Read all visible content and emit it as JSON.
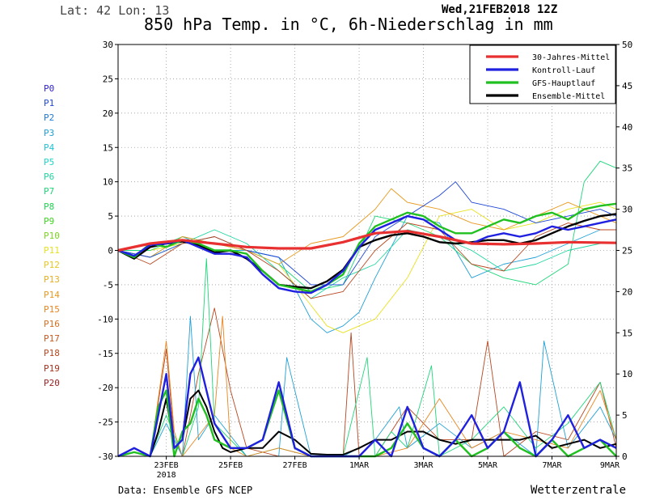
{
  "header": {
    "location": "Lat: 42 Lon: 13",
    "run": "Wed,21FEB2018 12Z",
    "title": "850 hPa Temp. in °C, 6h-Niederschlag in mm"
  },
  "footer": {
    "source": "Data: Ensemble GFS NCEP",
    "brand": "Wetterzentrale"
  },
  "members": [
    {
      "label": "P0",
      "color": "#2e1fd6"
    },
    {
      "label": "P1",
      "color": "#1f48d6"
    },
    {
      "label": "P2",
      "color": "#1f7ad6"
    },
    {
      "label": "P3",
      "color": "#1fa0d6"
    },
    {
      "label": "P4",
      "color": "#1fc4d6"
    },
    {
      "label": "P5",
      "color": "#1fd6c8"
    },
    {
      "label": "P6",
      "color": "#1fd6a0"
    },
    {
      "label": "P7",
      "color": "#1fd67a"
    },
    {
      "label": "P8",
      "color": "#1fd650"
    },
    {
      "label": "P9",
      "color": "#3ed61f"
    },
    {
      "label": "P10",
      "color": "#7ad61f"
    },
    {
      "label": "P11",
      "color": "#e8e21f"
    },
    {
      "label": "P12",
      "color": "#e8c81f"
    },
    {
      "label": "P13",
      "color": "#e8b01f"
    },
    {
      "label": "P14",
      "color": "#e89a1f"
    },
    {
      "label": "P15",
      "color": "#e8861f"
    },
    {
      "label": "P16",
      "color": "#d6701f"
    },
    {
      "label": "P17",
      "color": "#c85a1f"
    },
    {
      "label": "P18",
      "color": "#b8461f"
    },
    {
      "label": "P19",
      "color": "#a8321f"
    },
    {
      "label": "P20",
      "color": "#961f1f"
    }
  ],
  "chart_data": {
    "type": "line",
    "x_tick_labels": [
      "23FEB",
      "25FEB",
      "27FEB",
      "1MAR",
      "3MAR",
      "5MAR",
      "7MAR",
      "9MAR"
    ],
    "x_year_label": "2018",
    "x_tick_positions_days": [
      1.5,
      3.5,
      5.5,
      7.5,
      9.5,
      11.5,
      13.5,
      15.5
    ],
    "xlim_days": [
      0,
      15.5
    ],
    "y_left": {
      "ticks": [
        30,
        25,
        20,
        15,
        10,
        5,
        0,
        -5,
        -10,
        -15,
        -20,
        -25,
        -30
      ],
      "ylim": [
        -30,
        30
      ],
      "unit": "°C"
    },
    "y_right": {
      "ticks": [
        50,
        45,
        40,
        35,
        30,
        25,
        20,
        15,
        10,
        5,
        0
      ],
      "ylim": [
        0,
        50
      ],
      "unit": "mm"
    },
    "grid": true,
    "legend": {
      "position": "top-right",
      "entries": [
        {
          "label": "30-Jahres-Mittel",
          "color": "#e83030"
        },
        {
          "label": "Kontroll-Lauf",
          "color": "#2020e0"
        },
        {
          "label": "GFS-Hauptlauf",
          "color": "#20c020"
        },
        {
          "label": "Ensemble-Mittel",
          "color": "#000000"
        }
      ]
    },
    "temperature_series": [
      {
        "name": "30-Jahres-Mittel",
        "color": "#e83030",
        "width": 3.2,
        "x": [
          0,
          1,
          2,
          3,
          4,
          5,
          6,
          7,
          8,
          9,
          10,
          11,
          12,
          13,
          14,
          15.5
        ],
        "y": [
          0,
          1,
          1.5,
          1,
          0.5,
          0.3,
          0.3,
          1.2,
          2.5,
          2.8,
          2,
          1,
          0.9,
          1,
          1.2,
          1.1
        ]
      },
      {
        "name": "Ensemble-Mittel",
        "color": "#000000",
        "width": 2.4,
        "x": [
          0,
          0.5,
          1,
          1.5,
          2,
          2.5,
          3,
          3.5,
          4,
          4.5,
          5,
          5.5,
          6,
          6.5,
          7,
          7.5,
          8,
          8.5,
          9,
          9.5,
          10,
          10.5,
          11,
          11.5,
          12,
          12.5,
          13,
          13.5,
          14,
          14.5,
          15,
          15.5
        ],
        "y": [
          0,
          -1.2,
          0.5,
          1,
          1.3,
          0.8,
          -0.3,
          0,
          -1.2,
          -3,
          -5,
          -5.3,
          -5.5,
          -4.5,
          -2.8,
          0.5,
          1.5,
          2.2,
          2.5,
          2,
          1.2,
          1,
          1.2,
          1.5,
          1.5,
          1,
          1.5,
          2.5,
          3.5,
          4.3,
          5,
          5.3
        ]
      },
      {
        "name": "GFS-Hauptlauf",
        "color": "#20c020",
        "width": 2.4,
        "x": [
          0,
          0.5,
          1,
          1.5,
          2,
          2.5,
          3,
          3.5,
          4,
          4.5,
          5,
          5.5,
          6,
          6.5,
          7,
          7.5,
          8,
          8.5,
          9,
          9.5,
          10,
          10.5,
          11,
          11.5,
          12,
          12.5,
          13,
          13.5,
          14,
          14.5,
          15,
          15.5
        ],
        "y": [
          0,
          -1,
          1,
          0.5,
          1.5,
          1,
          0,
          0,
          -0.5,
          -3,
          -5,
          -5.5,
          -6,
          -5,
          -3.5,
          1,
          3.5,
          4.5,
          5.5,
          5,
          3.5,
          2.5,
          2.5,
          3.5,
          4.5,
          4,
          5,
          5.5,
          4.5,
          6,
          6.5,
          6.8
        ]
      },
      {
        "name": "Kontroll-Lauf",
        "color": "#2020e0",
        "width": 2.4,
        "x": [
          0,
          0.5,
          1,
          1.5,
          2,
          2.5,
          3,
          3.5,
          4,
          4.5,
          5,
          5.5,
          6,
          6.5,
          7,
          7.5,
          8,
          8.5,
          9,
          9.5,
          10,
          10.5,
          11,
          11.5,
          12,
          12.5,
          13,
          13.5,
          14,
          14.5,
          15,
          15.5
        ],
        "y": [
          0,
          -0.8,
          0.8,
          1,
          1.5,
          0.5,
          -0.5,
          -0.5,
          -1,
          -3.5,
          -5.5,
          -6,
          -6.2,
          -5,
          -3,
          0.5,
          3,
          4,
          5,
          4.5,
          3,
          1.5,
          1,
          2,
          2.5,
          2,
          2.5,
          3.5,
          3,
          3.5,
          4,
          4.5
        ]
      },
      {
        "name": "P3",
        "color": "#1fa0d6",
        "width": 0.9,
        "x": [
          0,
          1,
          2,
          3,
          4,
          5,
          6,
          6.5,
          7,
          7.5,
          8,
          9,
          10,
          11,
          12,
          13,
          14,
          15,
          15.5
        ],
        "y": [
          0,
          -1,
          2,
          0,
          0,
          -1,
          -10,
          -12,
          -11,
          -9,
          -4,
          5,
          4,
          -4,
          -2,
          -1,
          1,
          3,
          3
        ]
      },
      {
        "name": "P11",
        "color": "#e8e21f",
        "width": 0.9,
        "x": [
          0,
          1,
          2,
          3,
          4,
          5,
          6,
          6.5,
          7,
          7.5,
          8,
          9,
          10,
          11,
          12,
          13,
          14,
          15,
          15.5
        ],
        "y": [
          0,
          0,
          1,
          2,
          0,
          -2,
          -8,
          -11,
          -12,
          -11,
          -10,
          -4,
          5,
          6,
          3,
          4,
          6,
          7,
          6
        ]
      },
      {
        "name": "P7",
        "color": "#1fd67a",
        "width": 0.9,
        "x": [
          0,
          1,
          2,
          3,
          4,
          5,
          6,
          7,
          8,
          9,
          10,
          11,
          12,
          13,
          14,
          14.5,
          15,
          15.5
        ],
        "y": [
          0,
          0,
          2,
          1,
          0,
          -2,
          -6,
          -5,
          5,
          4,
          2,
          -2,
          -4,
          -5,
          -2,
          10,
          13,
          12
        ]
      },
      {
        "name": "P6",
        "color": "#1fd6a0",
        "width": 0.9,
        "x": [
          0,
          1,
          2,
          3,
          4,
          5,
          6,
          7,
          8,
          9,
          10,
          11,
          12,
          13,
          14,
          15,
          15.5
        ],
        "y": [
          0,
          -1,
          1,
          3,
          1,
          -3,
          -7,
          -4,
          -2,
          3,
          2,
          0,
          -3,
          -2,
          0,
          1,
          1
        ]
      },
      {
        "name": "P14",
        "color": "#e89a1f",
        "width": 0.9,
        "x": [
          0,
          1,
          2,
          3,
          4,
          5,
          6,
          7,
          8,
          8.5,
          9,
          10,
          11,
          12,
          13,
          14,
          15,
          15.5
        ],
        "y": [
          0,
          -1,
          2,
          1,
          0,
          -2,
          1,
          2,
          6,
          9,
          7,
          6,
          4,
          3,
          5,
          7,
          5,
          4
        ]
      },
      {
        "name": "P1",
        "color": "#1f48d6",
        "width": 0.9,
        "x": [
          0,
          1,
          2,
          3,
          4,
          5,
          6,
          7,
          8,
          9,
          10,
          10.5,
          11,
          12,
          13,
          14,
          15,
          15.5
        ],
        "y": [
          0,
          -1,
          1,
          2,
          0,
          -1,
          -5,
          -5,
          2,
          5,
          8,
          10,
          7,
          6,
          4,
          5,
          6,
          5
        ]
      },
      {
        "name": "P18",
        "color": "#b8461f",
        "width": 0.9,
        "x": [
          0,
          1,
          2,
          3,
          4,
          5,
          6,
          7,
          8,
          9,
          10,
          11,
          12,
          13,
          14,
          15,
          15.5
        ],
        "y": [
          0,
          -2,
          1,
          2,
          0,
          -3,
          -7,
          -6,
          0,
          4,
          3,
          -2,
          -3,
          2,
          4,
          3,
          3
        ]
      }
    ],
    "precipitation_series": [
      {
        "name": "Ensemble-Mittel",
        "color": "#000000",
        "width": 2,
        "x": [
          0,
          0.5,
          1,
          1.25,
          1.5,
          1.75,
          2,
          2.25,
          2.5,
          2.75,
          3,
          3.25,
          3.5,
          4,
          4.5,
          5,
          5.5,
          6,
          6.5,
          7,
          7.5,
          8,
          8.5,
          9,
          9.5,
          10,
          10.5,
          11,
          11.5,
          12,
          12.5,
          13,
          13.5,
          14,
          14.5,
          15,
          15.5
        ],
        "y": [
          0,
          1,
          0,
          3,
          7,
          1,
          2,
          7,
          8,
          6,
          3,
          1,
          0.5,
          1,
          1,
          3,
          2,
          0.3,
          0.2,
          0.2,
          1,
          2,
          2,
          3,
          3,
          2,
          1.5,
          2,
          2,
          2,
          2,
          2.5,
          1,
          1.5,
          2,
          1,
          1.5
        ]
      },
      {
        "name": "GFS-Hauptlauf",
        "color": "#20c020",
        "width": 2.4,
        "x": [
          0,
          0.5,
          1,
          1.25,
          1.5,
          1.75,
          2,
          2.25,
          2.5,
          2.75,
          3,
          3.5,
          4,
          4.5,
          5,
          5.5,
          6,
          6.5,
          7,
          7.5,
          8,
          8.5,
          9,
          9.5,
          10,
          10.5,
          11,
          11.5,
          12,
          12.5,
          13,
          13.5,
          14,
          14.5,
          15,
          15.5
        ],
        "y": [
          0,
          0.5,
          0,
          6,
          8,
          0,
          3,
          4,
          7,
          5,
          2,
          1,
          1,
          2,
          8,
          1,
          0,
          0,
          0,
          0,
          0,
          1,
          4,
          1,
          0,
          2,
          0,
          1,
          3,
          1,
          0,
          2,
          0,
          1,
          2,
          0
        ]
      },
      {
        "name": "Kontroll-Lauf",
        "color": "#2020e0",
        "width": 2.4,
        "x": [
          0,
          0.5,
          1,
          1.25,
          1.5,
          1.75,
          2,
          2.25,
          2.5,
          2.75,
          3,
          3.5,
          4,
          4.5,
          5,
          5.5,
          6,
          6.5,
          7,
          7.5,
          8,
          8.5,
          9,
          9.5,
          10,
          10.5,
          11,
          11.5,
          12,
          12.5,
          13,
          13.5,
          14,
          14.5,
          15,
          15.5
        ],
        "y": [
          0,
          1,
          0,
          5,
          10,
          1,
          2,
          10,
          12,
          8,
          4,
          1,
          1,
          2,
          9,
          1,
          0,
          0,
          0,
          0,
          2,
          0,
          6,
          1,
          0,
          2,
          5,
          1,
          3,
          9,
          0,
          2,
          5,
          1,
          2,
          1
        ]
      },
      {
        "name": "P18",
        "color": "#b8461f",
        "width": 0.9,
        "x": [
          0,
          1,
          1.5,
          1.75,
          2,
          2.5,
          3,
          3.5,
          4,
          5,
          6,
          7,
          7.25,
          7.5,
          8,
          9,
          10,
          11,
          11.5,
          12,
          13,
          14,
          15,
          15.5
        ],
        "y": [
          0,
          0,
          13,
          2,
          0,
          10,
          18,
          8,
          1,
          0,
          0,
          0,
          15,
          0,
          0,
          6,
          2,
          2,
          14,
          0,
          3,
          2,
          9,
          1
        ]
      },
      {
        "name": "P7",
        "color": "#1fd67a",
        "width": 0.9,
        "x": [
          0,
          1,
          1.5,
          2,
          2.5,
          2.75,
          3,
          4,
          5,
          6,
          7,
          7.75,
          8,
          8.5,
          9,
          9.75,
          10,
          11,
          12,
          13,
          14,
          15,
          15.5
        ],
        "y": [
          0,
          0,
          5,
          0,
          6,
          24,
          4,
          0,
          1,
          0,
          0,
          12,
          0,
          3,
          1,
          11,
          0,
          2,
          6,
          1,
          4,
          9,
          2
        ]
      },
      {
        "name": "P3",
        "color": "#1fa0d6",
        "width": 0.9,
        "x": [
          0,
          1,
          1.5,
          2,
          2.25,
          2.5,
          3,
          4,
          5,
          5.25,
          6,
          7,
          8,
          8.75,
          9,
          10,
          11,
          12,
          13,
          13.25,
          14,
          15,
          15.5
        ],
        "y": [
          0,
          0,
          4,
          0,
          17,
          2,
          5,
          0,
          0,
          12,
          0,
          0,
          2,
          6,
          1,
          4,
          1,
          3,
          0,
          14,
          1,
          6,
          2
        ]
      },
      {
        "name": "P15",
        "color": "#e8861f",
        "width": 0.9,
        "x": [
          0,
          1,
          1.5,
          1.75,
          2,
          3,
          3.25,
          3.5,
          4,
          5,
          6,
          7,
          8,
          9,
          10,
          11,
          12,
          13,
          14,
          15,
          15.5
        ],
        "y": [
          0,
          0,
          14,
          3,
          0,
          5,
          17,
          1,
          0,
          1,
          0,
          0,
          0,
          1,
          7,
          1,
          3,
          2,
          1,
          8,
          2
        ]
      }
    ]
  }
}
